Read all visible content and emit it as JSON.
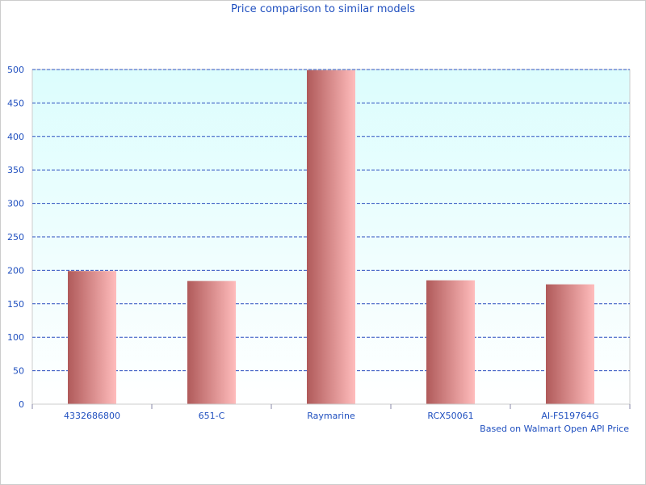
{
  "chart_data": {
    "type": "bar",
    "title": "Price comparison to similar models",
    "categories": [
      "4332686800",
      "651-C",
      "Raymarine",
      "RCX50061",
      "AI-FS19764G"
    ],
    "values": [
      199,
      184,
      499,
      185,
      179
    ],
    "ylim": [
      0,
      500
    ],
    "yticks": [
      0,
      50,
      100,
      150,
      200,
      250,
      300,
      350,
      400,
      450,
      500
    ],
    "grid": true,
    "annotation": "Based on Walmart Open API Price",
    "colors": {
      "bar_dark": "#b05a5a",
      "bar_light": "#ffbcbc",
      "plot_bg_top": "#dcfdfd",
      "plot_bg_bottom": "#ffffff",
      "grid": "#2b4fbf",
      "text": "#1f4fbf"
    }
  }
}
